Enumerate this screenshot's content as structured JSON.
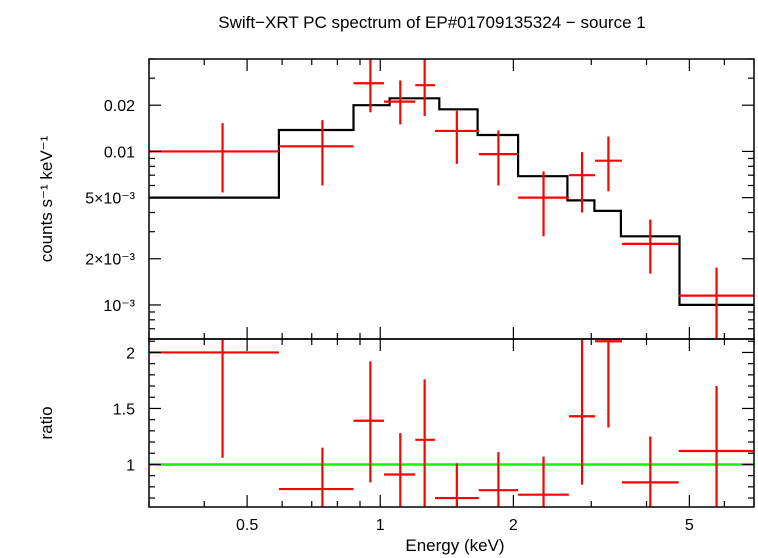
{
  "chart_data": [
    {
      "type": "scatter",
      "title": "Swift−XRT PC spectrum of EP#01709135324 − source 1",
      "xlabel": "Energy (keV)",
      "ylabel": "counts s⁻¹ keV⁻¹",
      "x_scale": "log",
      "y_scale": "log",
      "xlim": [
        0.3,
        7.0
      ],
      "ylim": [
        0.0006,
        0.04
      ],
      "y_ticks": [
        {
          "value": 0.02,
          "label": "0.02"
        },
        {
          "value": 0.01,
          "label": "0.01"
        },
        {
          "value": 0.005,
          "label": "5×10⁻³"
        },
        {
          "value": 0.002,
          "label": "2×10⁻³"
        },
        {
          "value": 0.001,
          "label": "10⁻³"
        }
      ],
      "series": [
        {
          "color": "#ff0000",
          "points": [
            {
              "xlo": 0.3,
              "xhi": 0.59,
              "x": 0.44,
              "y": 0.01,
              "ylo": 0.0054,
              "yhi": 0.0153
            },
            {
              "xlo": 0.59,
              "xhi": 0.87,
              "x": 0.74,
              "y": 0.0108,
              "ylo": 0.006,
              "yhi": 0.016
            },
            {
              "xlo": 0.87,
              "xhi": 1.02,
              "x": 0.95,
              "y": 0.0278,
              "ylo": 0.018,
              "yhi": 0.04
            },
            {
              "xlo": 1.02,
              "xhi": 1.2,
              "x": 1.11,
              "y": 0.0211,
              "ylo": 0.015,
              "yhi": 0.029
            },
            {
              "xlo": 1.2,
              "xhi": 1.33,
              "x": 1.26,
              "y": 0.027,
              "ylo": 0.017,
              "yhi": 0.04
            },
            {
              "xlo": 1.33,
              "xhi": 1.67,
              "x": 1.49,
              "y": 0.0136,
              "ylo": 0.0083,
              "yhi": 0.0184
            },
            {
              "xlo": 1.67,
              "xhi": 2.05,
              "x": 1.85,
              "y": 0.0096,
              "ylo": 0.006,
              "yhi": 0.0137
            },
            {
              "xlo": 2.05,
              "xhi": 2.67,
              "x": 2.34,
              "y": 0.005,
              "ylo": 0.0028,
              "yhi": 0.0074
            },
            {
              "xlo": 2.67,
              "xhi": 3.06,
              "x": 2.86,
              "y": 0.007,
              "ylo": 0.004,
              "yhi": 0.0099
            },
            {
              "xlo": 3.06,
              "xhi": 3.52,
              "x": 3.28,
              "y": 0.0087,
              "ylo": 0.0055,
              "yhi": 0.0125
            },
            {
              "xlo": 3.52,
              "xhi": 4.73,
              "x": 4.08,
              "y": 0.0025,
              "ylo": 0.0016,
              "yhi": 0.0036
            },
            {
              "xlo": 4.73,
              "xhi": 7.0,
              "x": 5.76,
              "y": 0.00115,
              "ylo": 0.0006,
              "yhi": 0.00175
            }
          ]
        },
        {
          "type": "step",
          "color": "#000000",
          "steps": [
            {
              "xlo": 0.3,
              "xhi": 0.59,
              "y": 0.005
            },
            {
              "xlo": 0.59,
              "xhi": 0.87,
              "y": 0.0138
            },
            {
              "xlo": 0.87,
              "xhi": 1.05,
              "y": 0.02
            },
            {
              "xlo": 1.05,
              "xhi": 1.36,
              "y": 0.0222
            },
            {
              "xlo": 1.36,
              "xhi": 1.66,
              "y": 0.0188
            },
            {
              "xlo": 1.66,
              "xhi": 2.05,
              "y": 0.0128
            },
            {
              "xlo": 2.05,
              "xhi": 2.65,
              "y": 0.0069
            },
            {
              "xlo": 2.65,
              "xhi": 3.05,
              "y": 0.0048
            },
            {
              "xlo": 3.05,
              "xhi": 3.5,
              "y": 0.0041
            },
            {
              "xlo": 3.5,
              "xhi": 4.75,
              "y": 0.0028
            },
            {
              "xlo": 4.75,
              "xhi": 7.0,
              "y": 0.001
            }
          ]
        }
      ]
    },
    {
      "type": "scatter",
      "xlabel": "Energy (keV)",
      "ylabel": "ratio",
      "x_scale": "log",
      "xlim": [
        0.3,
        7.0
      ],
      "ylim": [
        0.62,
        2.12
      ],
      "x_ticks": [
        {
          "value": 0.5,
          "label": "0.5"
        },
        {
          "value": 1,
          "label": "1"
        },
        {
          "value": 2,
          "label": "2"
        },
        {
          "value": 5,
          "label": "5"
        }
      ],
      "y_ticks": [
        {
          "value": 2,
          "label": "2"
        },
        {
          "value": 1.5,
          "label": "1.5"
        },
        {
          "value": 1,
          "label": "1"
        }
      ],
      "reference_line": {
        "y": 1,
        "color": "#00ff00"
      },
      "series": [
        {
          "color": "#ff0000",
          "points": [
            {
              "xlo": 0.3,
              "xhi": 0.59,
              "x": 0.44,
              "y": 2.0,
              "ylo": 1.06,
              "yhi": 2.12
            },
            {
              "xlo": 0.59,
              "xhi": 0.87,
              "x": 0.74,
              "y": 0.78,
              "ylo": 0.62,
              "yhi": 1.15
            },
            {
              "xlo": 0.87,
              "xhi": 1.02,
              "x": 0.95,
              "y": 1.39,
              "ylo": 0.84,
              "yhi": 1.92
            },
            {
              "xlo": 1.02,
              "xhi": 1.2,
              "x": 1.11,
              "y": 0.91,
              "ylo": 0.62,
              "yhi": 1.28
            },
            {
              "xlo": 1.2,
              "xhi": 1.33,
              "x": 1.26,
              "y": 1.22,
              "ylo": 0.62,
              "yhi": 1.76
            },
            {
              "xlo": 1.33,
              "xhi": 1.67,
              "x": 1.49,
              "y": 0.7,
              "ylo": 0.62,
              "yhi": 1.01
            },
            {
              "xlo": 1.67,
              "xhi": 2.05,
              "x": 1.85,
              "y": 0.77,
              "ylo": 0.62,
              "yhi": 1.11
            },
            {
              "xlo": 2.05,
              "xhi": 2.67,
              "x": 2.34,
              "y": 0.73,
              "ylo": 0.62,
              "yhi": 1.07
            },
            {
              "xlo": 2.67,
              "xhi": 3.06,
              "x": 2.86,
              "y": 1.43,
              "ylo": 0.82,
              "yhi": 2.12
            },
            {
              "xlo": 3.06,
              "xhi": 3.52,
              "x": 3.28,
              "y": 2.1,
              "ylo": 1.33,
              "yhi": 2.12
            },
            {
              "xlo": 3.52,
              "xhi": 4.73,
              "x": 4.08,
              "y": 0.84,
              "ylo": 0.62,
              "yhi": 1.25
            },
            {
              "xlo": 4.73,
              "xhi": 7.0,
              "x": 5.76,
              "y": 1.12,
              "ylo": 0.62,
              "yhi": 1.7
            }
          ]
        }
      ]
    }
  ]
}
